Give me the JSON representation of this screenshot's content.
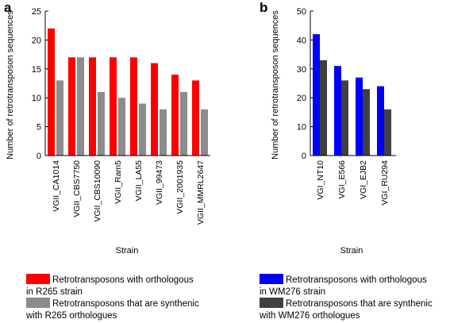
{
  "chart_data": [
    {
      "panel": "a",
      "type": "bar",
      "xlabel": "Strain",
      "ylabel": "Number of retrotransposon sequences",
      "ylim": [
        0,
        25
      ],
      "yticks": [
        0,
        5,
        10,
        15,
        20,
        25
      ],
      "categories": [
        "VGII_CA1014",
        "VGII_CBS7750",
        "VGII_CBS10090",
        "VGII_Ram5",
        "VGII_LA55",
        "VGII_99473",
        "VGII_2001935",
        "VGII_MMRL2647"
      ],
      "series": [
        {
          "name": "Retrotransposons with orthologous in R265 strain",
          "color": "#ff0000",
          "values": [
            22,
            17,
            17,
            17,
            17,
            16,
            14,
            13
          ]
        },
        {
          "name": "Retrotransposons that are synthenic with R265 orthologues",
          "color": "#8c8c8c",
          "values": [
            13,
            17,
            11,
            10,
            9,
            8,
            11,
            8
          ]
        }
      ],
      "legend": [
        {
          "line1": "Retrotransposons with orthologous",
          "line2": "in R265 strain",
          "color": "#ff0000"
        },
        {
          "line1": "Retrotransposons that are synthenic",
          "line2": "with R265 orthologues",
          "color": "#8c8c8c"
        }
      ],
      "grid": false,
      "legend_placement": "bottom"
    },
    {
      "panel": "b",
      "type": "bar",
      "xlabel": "Strain",
      "ylabel": "Number of retrotransposon sequences",
      "ylim": [
        0,
        50
      ],
      "yticks": [
        0,
        10,
        20,
        30,
        40,
        50
      ],
      "categories": [
        "VGI_NT10",
        "VGI_E566",
        "VGI_EJB2",
        "VGI_RU294"
      ],
      "series": [
        {
          "name": "Retrotransposons with orthologous in WM276 strain",
          "color": "#0000ff",
          "values": [
            42,
            31,
            27,
            24
          ]
        },
        {
          "name": "Retrotransposons that are synthenic with WM276 orthologues",
          "color": "#404040",
          "values": [
            33,
            26,
            23,
            16
          ]
        }
      ],
      "legend": [
        {
          "line1": "Retrotransposons with orthologous",
          "line2": "in WM276 strain",
          "color": "#0000ff"
        },
        {
          "line1": "Retrotransposons that are synthenic",
          "line2": "with WM276 orthologues",
          "color": "#404040"
        }
      ],
      "grid": false,
      "legend_placement": "bottom"
    }
  ]
}
